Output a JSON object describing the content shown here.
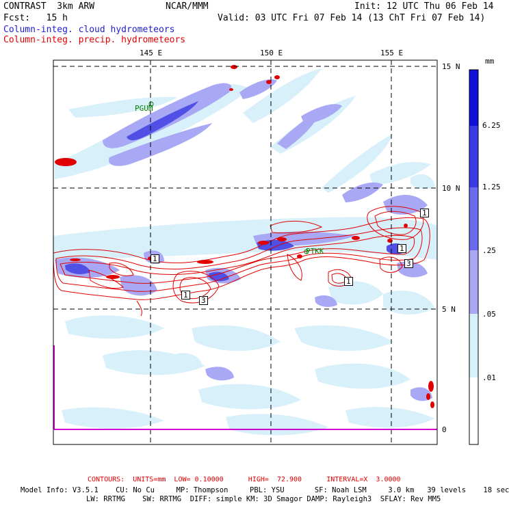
{
  "header": {
    "experiment": "CONTRAST  3km ARW",
    "source": "NCAR/MMM",
    "init": "Init: 12 UTC Thu 06 Feb 14",
    "forecast": "Fcst:   15 h",
    "valid": "Valid: 03 UTC Fri 07 Feb 14 (13 ChT Fri 07 Feb 14)"
  },
  "legend": {
    "cloud_label": "Column-integ. cloud hydrometeors",
    "precip_label": "Column-integ. precip. hydrometeors"
  },
  "axes": {
    "lon_labels": [
      "145 E",
      "150 E",
      "155 E"
    ],
    "lat_labels": [
      "15 N",
      "10 N",
      "5 N",
      "0"
    ]
  },
  "colorbar": {
    "units": "mm",
    "levels": [
      "6.25",
      "1.25",
      ".25",
      ".05",
      ".01"
    ],
    "colors": [
      "#1010d8",
      "#3a3ae8",
      "#6a6aee",
      "#a8a8f4",
      "#d8f0fa",
      "#ffffff"
    ]
  },
  "stations": [
    "PGUM",
    "PTKK"
  ],
  "contour_labels": [
    "1",
    "1",
    "3",
    "1",
    "1",
    "3",
    "1"
  ],
  "footer": {
    "contours": "CONTOURS:  UNITS=mm  LOW= 0.10000      HIGH=  72.900      INTERVAL=X  3.0000",
    "model_line1": "Model Info: V3.5.1    CU: No Cu     MP: Thompson     PBL: YSU       SF: Noah LSM     3.0 km   39 levels    18 sec",
    "model_line2": "LW: RRTMG    SW: RRTMG  DIFF: simple KM: 3D Smagor DAMP: Rayleigh3  SFLAY: Rev MM5"
  }
}
